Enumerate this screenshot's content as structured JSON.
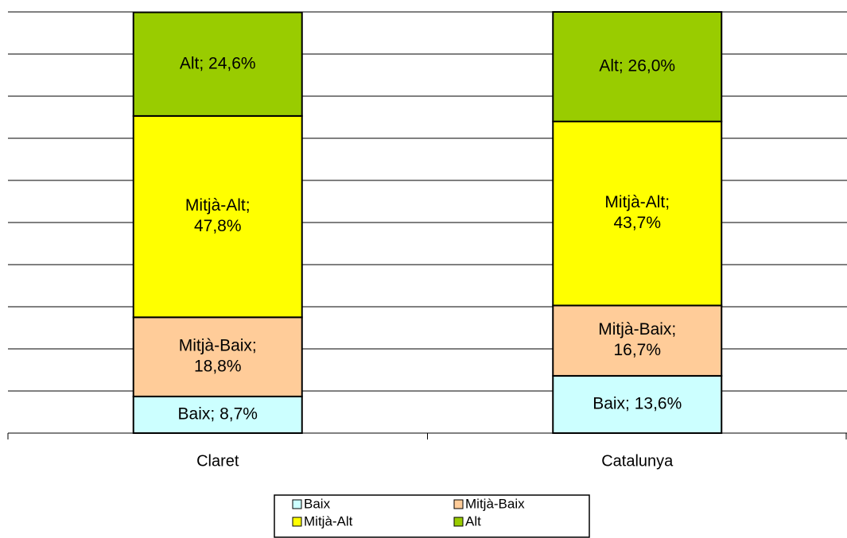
{
  "chart_data": {
    "type": "stacked_bar",
    "categories": [
      "Claret",
      "Catalunya"
    ],
    "series": [
      {
        "name": "Baix",
        "color": "#ccffff",
        "values": [
          8.7,
          13.6
        ],
        "value_labels": [
          [
            "Baix; 8,7%"
          ],
          [
            "Baix; 13,6%"
          ]
        ]
      },
      {
        "name": "Mitjà-Baix",
        "color": "#ffcc99",
        "values": [
          18.8,
          16.7
        ],
        "value_labels": [
          [
            "Mitjà-Baix;",
            "18,8%"
          ],
          [
            "Mitjà-Baix;",
            "16,7%"
          ]
        ]
      },
      {
        "name": "Mitjà-Alt",
        "color": "#ffff00",
        "values": [
          47.8,
          43.7
        ],
        "value_labels": [
          [
            "Mitjà-Alt;",
            "47,8%"
          ],
          [
            "Mitjà-Alt;",
            "43,7%"
          ]
        ]
      },
      {
        "name": "Alt",
        "color": "#99cc00",
        "values": [
          24.6,
          26.0
        ],
        "value_labels": [
          [
            "Alt; 24,6%"
          ],
          [
            "Alt; 26,0%"
          ]
        ]
      }
    ],
    "ylim": [
      0,
      100
    ],
    "yticks": [
      0,
      10,
      20,
      30,
      40,
      50,
      60,
      70,
      80,
      90,
      100
    ],
    "grid": true,
    "legend": "bottom"
  }
}
